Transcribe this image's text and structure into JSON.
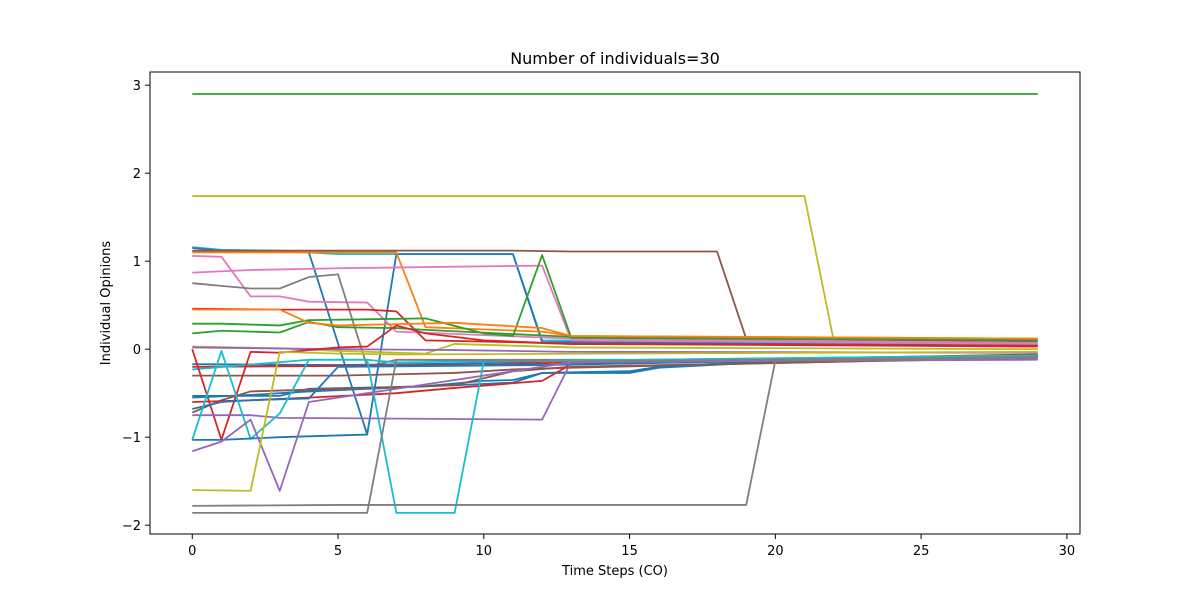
{
  "chart_data": {
    "type": "line",
    "title": "Number of individuals=30",
    "xlabel": "Time Steps (CO)",
    "ylabel": "Individual Opinions",
    "xlim": [
      -1.45,
      30.45
    ],
    "ylim": [
      -2.1,
      3.15
    ],
    "xticks": [
      0,
      5,
      10,
      15,
      20,
      25,
      30
    ],
    "yticks": [
      -2,
      -1,
      0,
      1,
      2,
      3
    ],
    "grid": false,
    "legend": "none",
    "series": [
      {
        "color": "#2ca02c",
        "points": [
          [
            0,
            2.9
          ],
          [
            29,
            2.9
          ]
        ]
      },
      {
        "color": "#bcbd22",
        "points": [
          [
            0,
            1.74
          ],
          [
            21,
            1.74
          ],
          [
            22,
            0.1
          ],
          [
            29,
            0.06
          ]
        ]
      },
      {
        "color": "#17becf",
        "points": [
          [
            0,
            1.16
          ],
          [
            1,
            1.13
          ],
          [
            3,
            1.12
          ],
          [
            5,
            1.08
          ],
          [
            11,
            1.08
          ],
          [
            12,
            0.1
          ],
          [
            29,
            0.05
          ]
        ]
      },
      {
        "color": "#1f77b4",
        "points": [
          [
            0,
            1.15
          ],
          [
            1,
            1.12
          ],
          [
            4,
            1.1
          ],
          [
            6,
            -0.97
          ],
          [
            7,
            1.08
          ],
          [
            11,
            1.08
          ],
          [
            12,
            0.08
          ],
          [
            29,
            0.04
          ]
        ]
      },
      {
        "color": "#8c564b",
        "points": [
          [
            0,
            1.12
          ],
          [
            5,
            1.12
          ],
          [
            11,
            1.12
          ],
          [
            13,
            1.11
          ],
          [
            18,
            1.11
          ],
          [
            19,
            0.12
          ],
          [
            29,
            0.09
          ]
        ]
      },
      {
        "color": "#ff7f0e",
        "points": [
          [
            0,
            1.1
          ],
          [
            2,
            1.1
          ],
          [
            6,
            1.1
          ],
          [
            7,
            1.1
          ],
          [
            8,
            0.25
          ],
          [
            12,
            0.2
          ],
          [
            13,
            0.15
          ],
          [
            29,
            0.12
          ]
        ]
      },
      {
        "color": "#e377c2",
        "points": [
          [
            0,
            1.06
          ],
          [
            1,
            1.05
          ],
          [
            2,
            0.6
          ],
          [
            3,
            0.6
          ],
          [
            4,
            0.54
          ],
          [
            6,
            0.53
          ],
          [
            7,
            0.2
          ],
          [
            13,
            0.12
          ],
          [
            29,
            0.07
          ]
        ]
      },
      {
        "color": "#e377c2",
        "points": [
          [
            0,
            0.87
          ],
          [
            2,
            0.9
          ],
          [
            5,
            0.92
          ],
          [
            12,
            0.95
          ],
          [
            13,
            0.1
          ],
          [
            29,
            0.06
          ]
        ]
      },
      {
        "color": "#7f7f7f",
        "points": [
          [
            0,
            0.75
          ],
          [
            1,
            0.72
          ],
          [
            2,
            0.69
          ],
          [
            3,
            0.69
          ],
          [
            4,
            0.82
          ],
          [
            5,
            0.85
          ],
          [
            6,
            -0.2
          ],
          [
            7,
            -0.12
          ],
          [
            20,
            -0.12
          ],
          [
            29,
            -0.1
          ]
        ]
      },
      {
        "color": "#d62728",
        "points": [
          [
            0,
            0.46
          ],
          [
            3,
            0.45
          ],
          [
            6,
            0.45
          ],
          [
            7,
            0.43
          ],
          [
            8,
            0.1
          ],
          [
            11,
            0.08
          ],
          [
            13,
            0.06
          ],
          [
            29,
            0.04
          ]
        ]
      },
      {
        "color": "#2ca02c",
        "points": [
          [
            0,
            0.29
          ],
          [
            1,
            0.29
          ],
          [
            3,
            0.27
          ],
          [
            4,
            0.33
          ],
          [
            8,
            0.35
          ],
          [
            10,
            0.18
          ],
          [
            11,
            0.15
          ],
          [
            12,
            1.07
          ],
          [
            13,
            0.13
          ],
          [
            29,
            0.1
          ]
        ]
      },
      {
        "color": "#2ca02c",
        "points": [
          [
            0,
            0.18
          ],
          [
            1,
            0.21
          ],
          [
            3,
            0.19
          ],
          [
            4,
            0.31
          ],
          [
            5,
            0.25
          ],
          [
            7,
            0.24
          ],
          [
            8,
            0.22
          ],
          [
            13,
            0.14
          ],
          [
            29,
            0.11
          ]
        ]
      },
      {
        "color": "#ff7f0e",
        "points": [
          [
            0,
            0.45
          ],
          [
            3,
            0.45
          ],
          [
            4,
            0.3
          ],
          [
            5,
            0.27
          ],
          [
            9,
            0.3
          ],
          [
            10,
            0.28
          ],
          [
            12,
            0.24
          ],
          [
            13,
            0.15
          ],
          [
            29,
            0.12
          ]
        ]
      },
      {
        "color": "#bcbd22",
        "points": [
          [
            0,
            0.03
          ],
          [
            3,
            0.01
          ],
          [
            5,
            -0.02
          ],
          [
            8,
            -0.05
          ],
          [
            9,
            0.06
          ],
          [
            11,
            0.04
          ],
          [
            13,
            0.02
          ],
          [
            29,
            0.0
          ]
        ]
      },
      {
        "color": "#9467bd",
        "points": [
          [
            0,
            0.02
          ],
          [
            5,
            0.0
          ],
          [
            9,
            -0.01
          ],
          [
            13,
            -0.03
          ],
          [
            29,
            -0.04
          ]
        ]
      },
      {
        "color": "#1f77b4",
        "points": [
          [
            0,
            -0.17
          ],
          [
            5,
            -0.18
          ],
          [
            10,
            -0.16
          ],
          [
            13,
            -0.13
          ],
          [
            29,
            -0.07
          ]
        ]
      },
      {
        "color": "#d62728",
        "points": [
          [
            0,
            -0.2
          ],
          [
            5,
            -0.19
          ],
          [
            10,
            -0.18
          ],
          [
            13,
            -0.15
          ],
          [
            29,
            -0.06
          ]
        ]
      },
      {
        "color": "#17becf",
        "points": [
          [
            0,
            -0.23
          ],
          [
            4,
            -0.12
          ],
          [
            6,
            -0.12
          ],
          [
            7,
            -0.15
          ],
          [
            13,
            -0.13
          ],
          [
            29,
            -0.08
          ]
        ]
      },
      {
        "color": "#8c564b",
        "points": [
          [
            0,
            -0.3
          ],
          [
            5,
            -0.3
          ],
          [
            9,
            -0.27
          ],
          [
            11,
            -0.23
          ],
          [
            13,
            -0.21
          ],
          [
            29,
            -0.09
          ]
        ]
      },
      {
        "color": "#d62728",
        "points": [
          [
            0,
            0.0
          ],
          [
            1,
            -1.03
          ],
          [
            2,
            -0.03
          ],
          [
            3,
            -0.04
          ],
          [
            5,
            0.02
          ],
          [
            6,
            0.03
          ],
          [
            7,
            0.27
          ],
          [
            8,
            0.18
          ],
          [
            10,
            0.1
          ],
          [
            13,
            0.06
          ],
          [
            29,
            0.03
          ]
        ]
      },
      {
        "color": "#1f77b4",
        "points": [
          [
            0,
            -0.53
          ],
          [
            3,
            -0.53
          ],
          [
            4,
            -0.45
          ],
          [
            7,
            -0.43
          ],
          [
            8,
            -0.42
          ],
          [
            10,
            -0.36
          ],
          [
            11,
            -0.35
          ],
          [
            12,
            -0.27
          ],
          [
            15,
            -0.25
          ],
          [
            16,
            -0.2
          ],
          [
            20,
            -0.13
          ],
          [
            29,
            -0.08
          ]
        ]
      },
      {
        "color": "#1f77b4",
        "points": [
          [
            0,
            -0.55
          ],
          [
            2,
            -0.52
          ],
          [
            4,
            -0.48
          ],
          [
            6,
            -0.45
          ],
          [
            9,
            -0.41
          ],
          [
            11,
            -0.38
          ],
          [
            12,
            -0.27
          ],
          [
            15,
            -0.27
          ],
          [
            16,
            -0.21
          ],
          [
            19,
            -0.16
          ],
          [
            29,
            -0.08
          ]
        ]
      },
      {
        "color": "#8c564b",
        "points": [
          [
            0,
            -0.72
          ],
          [
            1,
            -0.58
          ],
          [
            2,
            -0.48
          ],
          [
            6,
            -0.44
          ],
          [
            9,
            -0.41
          ],
          [
            11,
            -0.25
          ],
          [
            13,
            -0.2
          ],
          [
            29,
            -0.1
          ]
        ]
      },
      {
        "color": "#d62728",
        "points": [
          [
            0,
            -0.6
          ],
          [
            2,
            -0.58
          ],
          [
            4,
            -0.55
          ],
          [
            7,
            -0.5
          ],
          [
            9,
            -0.44
          ],
          [
            12,
            -0.36
          ],
          [
            13,
            -0.17
          ],
          [
            29,
            -0.08
          ]
        ]
      },
      {
        "color": "#1f77b4",
        "points": [
          [
            0,
            -0.68
          ],
          [
            1,
            -0.6
          ],
          [
            2,
            -0.58
          ],
          [
            4,
            -0.56
          ],
          [
            5,
            -0.2
          ],
          [
            12,
            -0.18
          ],
          [
            29,
            -0.08
          ]
        ]
      },
      {
        "color": "#9467bd",
        "points": [
          [
            0,
            -0.75
          ],
          [
            2,
            -0.75
          ],
          [
            3,
            -0.78
          ],
          [
            12,
            -0.8
          ],
          [
            13,
            -0.14
          ],
          [
            29,
            -0.12
          ]
        ]
      },
      {
        "color": "#17becf",
        "points": [
          [
            0,
            -1.03
          ],
          [
            1,
            -0.02
          ],
          [
            2,
            -1.02
          ],
          [
            3,
            -0.73
          ],
          [
            4,
            -0.12
          ],
          [
            6,
            -0.12
          ],
          [
            7,
            -1.86
          ],
          [
            9,
            -1.86
          ],
          [
            10,
            -0.14
          ],
          [
            29,
            -0.07
          ]
        ]
      },
      {
        "color": "#1f77b4",
        "points": [
          [
            0,
            -1.03
          ],
          [
            1,
            -1.03
          ],
          [
            3,
            -1.0
          ],
          [
            6,
            -0.97
          ]
        ]
      },
      {
        "color": "#9467bd",
        "points": [
          [
            0,
            -1.16
          ],
          [
            1,
            -1.05
          ],
          [
            2,
            -0.8
          ],
          [
            3,
            -1.61
          ],
          [
            4,
            -0.6
          ],
          [
            6,
            -0.5
          ],
          [
            13,
            -0.15
          ],
          [
            29,
            -0.11
          ]
        ]
      },
      {
        "color": "#bcbd22",
        "points": [
          [
            0,
            -1.6
          ],
          [
            2,
            -1.61
          ],
          [
            3,
            -0.03
          ],
          [
            5,
            -0.05
          ],
          [
            7,
            -0.06
          ],
          [
            29,
            -0.03
          ]
        ]
      },
      {
        "color": "#7f7f7f",
        "points": [
          [
            0,
            -1.78
          ],
          [
            5,
            -1.77
          ],
          [
            19,
            -1.77
          ],
          [
            20,
            -0.13
          ],
          [
            29,
            -0.1
          ]
        ]
      },
      {
        "color": "#7f7f7f",
        "points": [
          [
            0,
            -1.86
          ],
          [
            6,
            -1.86
          ],
          [
            7,
            -0.12
          ],
          [
            13,
            -0.14
          ],
          [
            29,
            -0.09
          ]
        ]
      }
    ]
  }
}
